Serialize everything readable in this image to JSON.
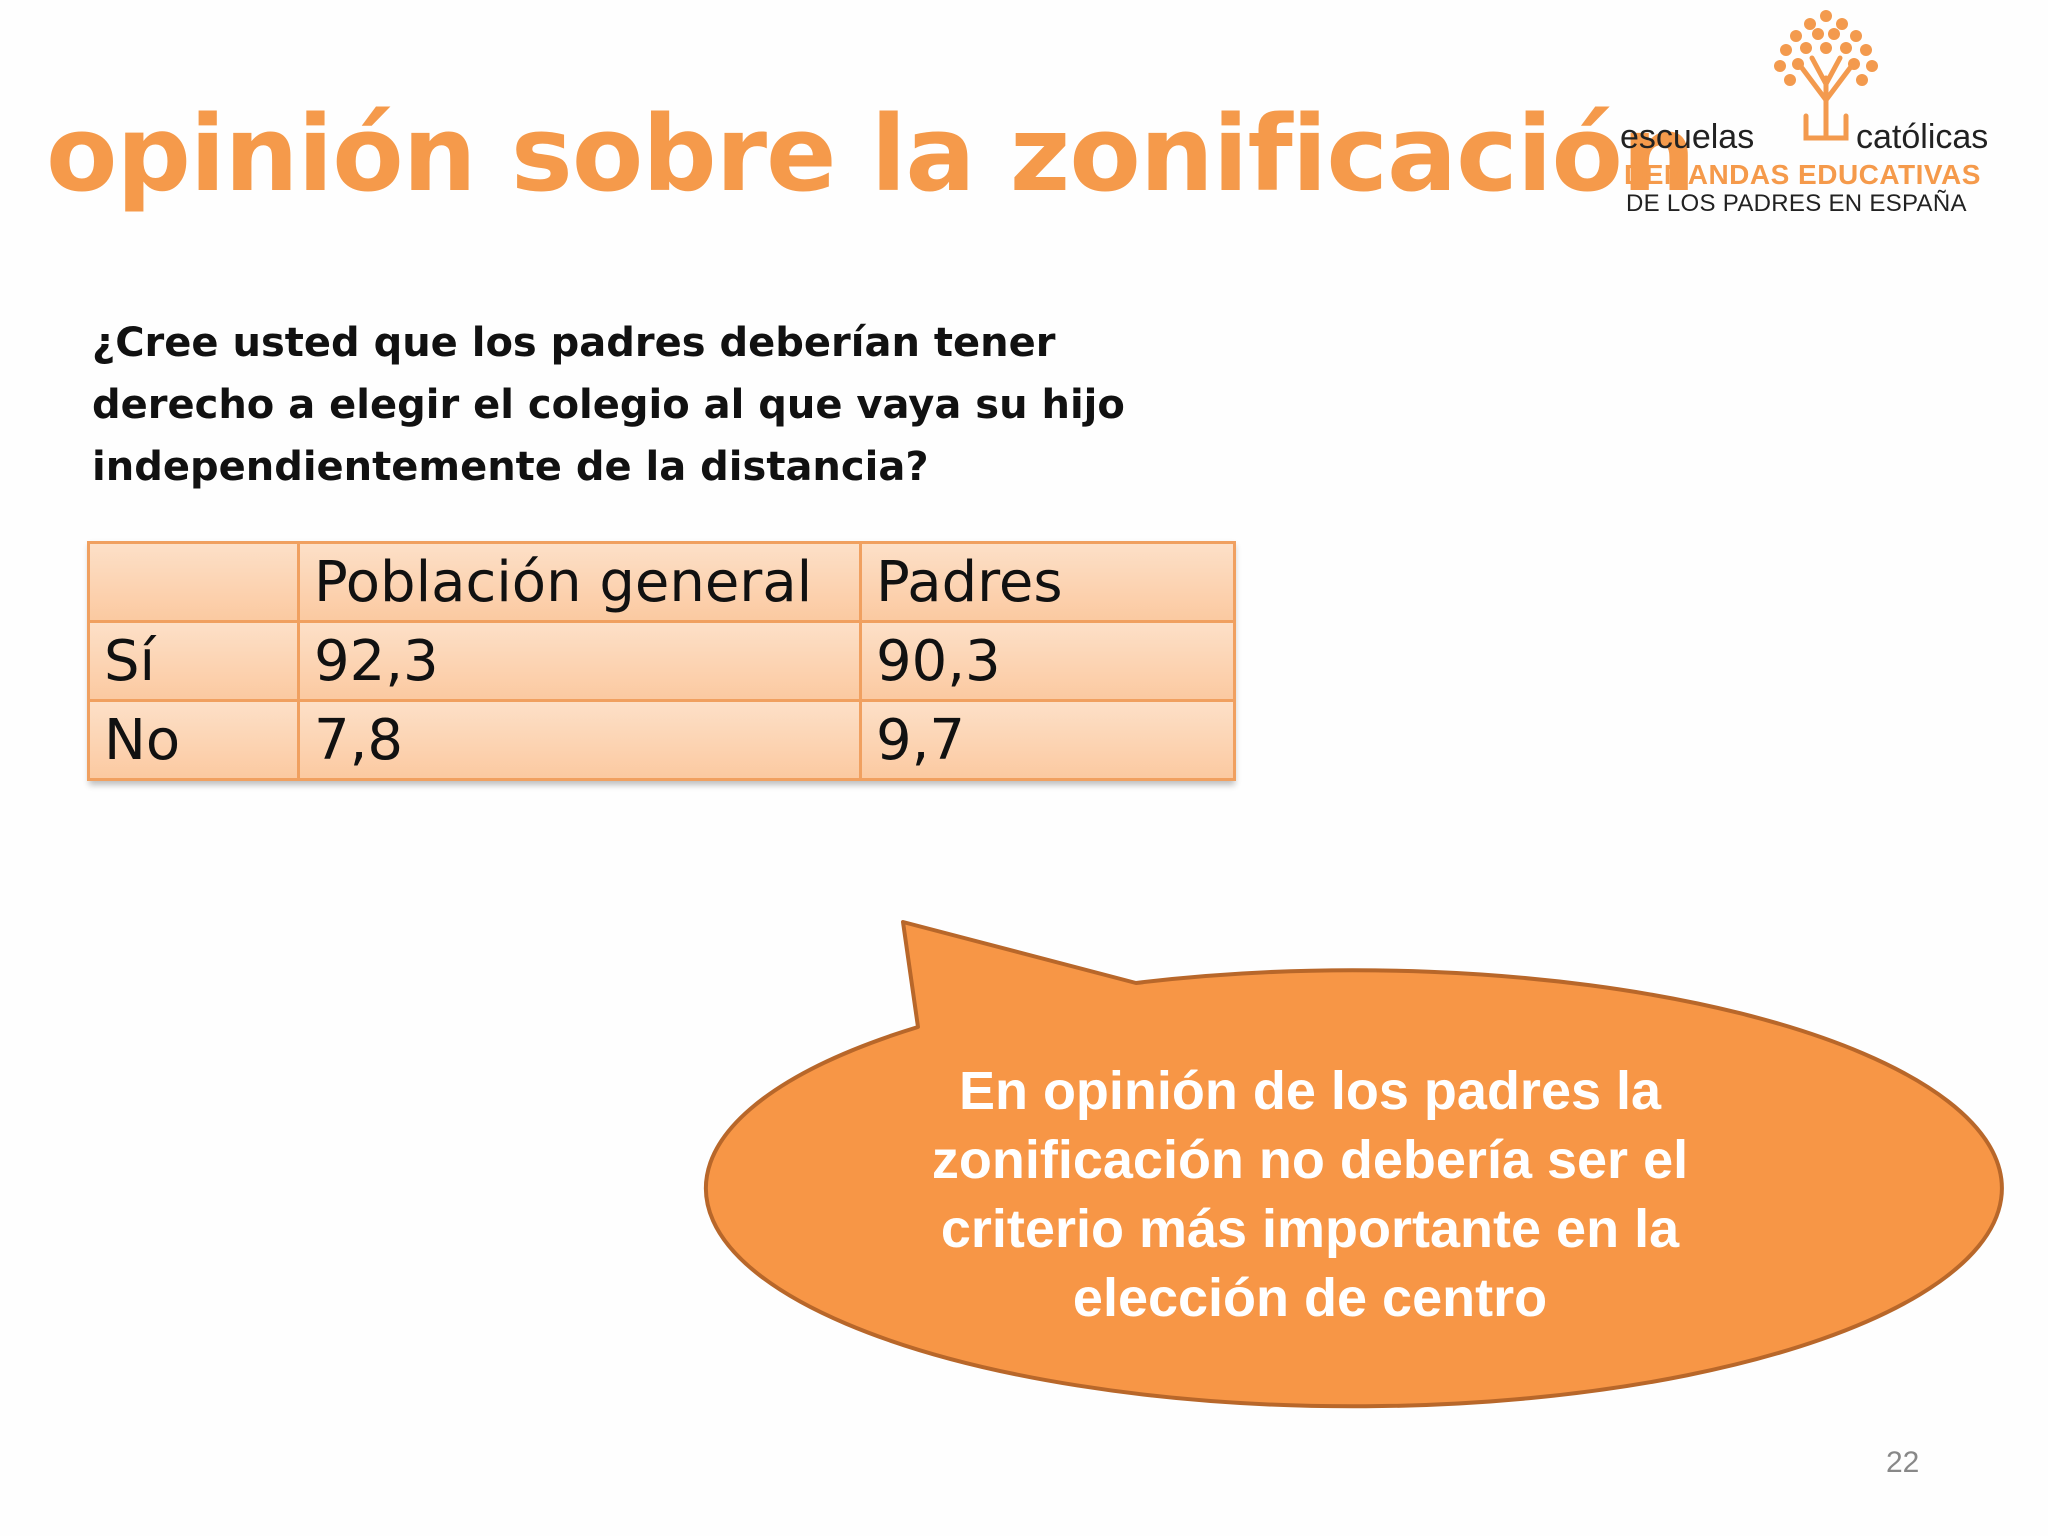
{
  "slide": {
    "title": "opinión sobre la zonificación",
    "question": "¿Cree usted que los padres deberían tener derecho a elegir el colegio al que vaya su hijo independientemente de la distancia?",
    "page_number": "22"
  },
  "logo": {
    "word_left": "escuelas",
    "word_right": "católicas",
    "line1": "DEMANDAS EDUCATIVAS",
    "line2": "DE LOS PADRES EN ESPAÑA",
    "icon": "tree-icon"
  },
  "table": {
    "headers": [
      "",
      "Población general",
      "Padres"
    ],
    "rows": [
      [
        "Sí",
        "92,3",
        "90,3"
      ],
      [
        "No",
        "7,8",
        "9,7"
      ]
    ]
  },
  "callout": {
    "text": "En opinión de los padres la zonificación no debería ser el criterio más importante en la elección de centro",
    "icon": "speech-bubble"
  },
  "colors": {
    "accent": "#f59a4b",
    "callout_fill": "#f79646",
    "callout_border": "#b8672a",
    "table_border": "#f0a060",
    "table_fill_top": "#fde0c8",
    "table_fill_bottom": "#fbc9a0"
  }
}
